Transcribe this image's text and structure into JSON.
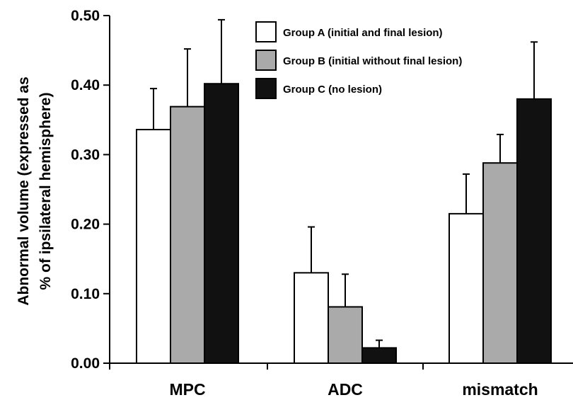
{
  "chart_data": {
    "type": "bar",
    "categories": [
      "MPC",
      "ADC",
      "mismatch"
    ],
    "series": [
      {
        "name": "Group A (initial and final lesion)",
        "values": [
          0.336,
          0.13,
          0.215
        ],
        "errors": [
          0.059,
          0.066,
          0.057
        ],
        "color": "#ffffff"
      },
      {
        "name": "Group B (initial without final lesion)",
        "values": [
          0.369,
          0.081,
          0.288
        ],
        "errors": [
          0.083,
          0.047,
          0.041
        ],
        "color": "#aaaaaa"
      },
      {
        "name": "Group C (no lesion)",
        "values": [
          0.402,
          0.022,
          0.38
        ],
        "errors": [
          0.092,
          0.011,
          0.082
        ],
        "color": "#111111"
      }
    ],
    "ylabel_line1": "Abnormal volume (expressed as",
    "ylabel_line2": "% of ipsilateral hemisphere)",
    "ylim": [
      0,
      0.5
    ],
    "yticks": [
      "0.00",
      "0.10",
      "0.20",
      "0.30",
      "0.40",
      "0.50"
    ],
    "legend_position": "top-right",
    "grid": false
  }
}
